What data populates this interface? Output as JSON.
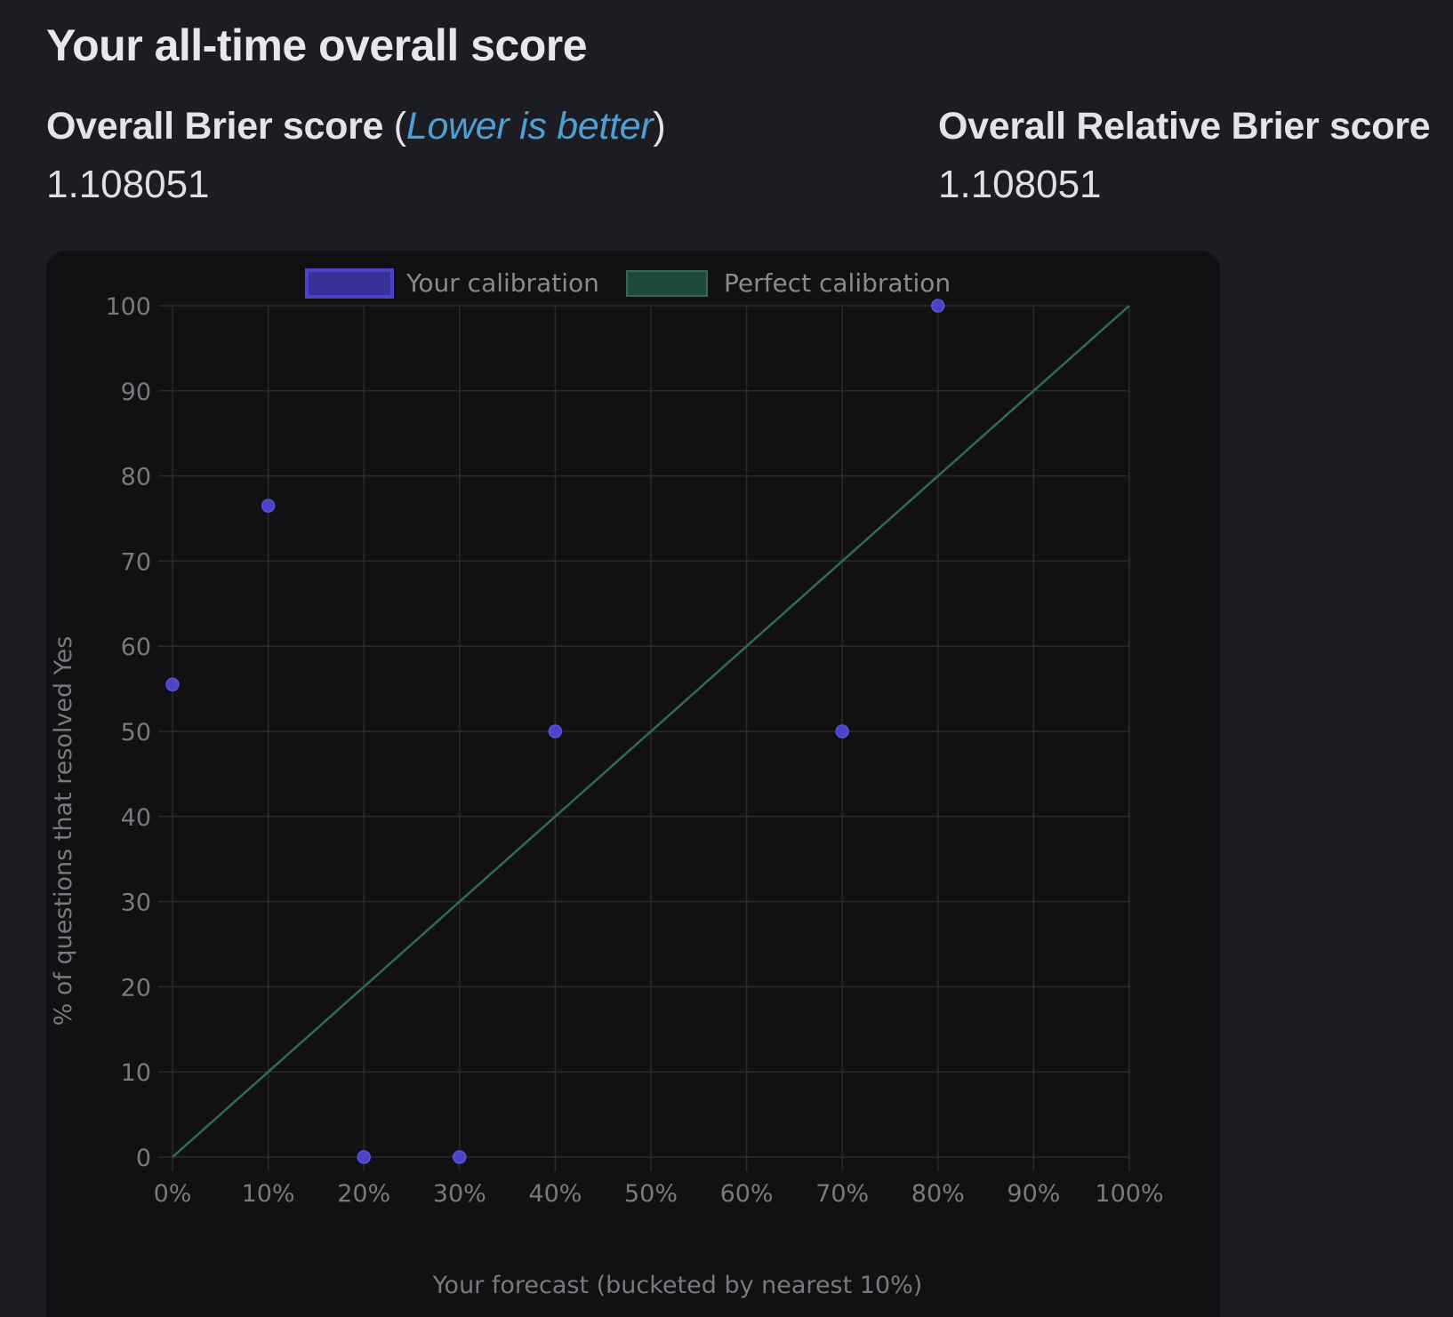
{
  "page": {
    "title": "Your all-time overall score"
  },
  "brier": {
    "label": "Overall Brier score",
    "open_paren": "(",
    "link_text": "Lower is better",
    "close_paren": ")",
    "value": "1.108051"
  },
  "relative_brier": {
    "label": "Overall Relative Brier score",
    "value": "1.108051"
  },
  "colors": {
    "background": "#1c1d22",
    "card": "#111113",
    "link": "#4e9fd6",
    "your_calibration": "#4b44c9",
    "perfect_calibration": "#2f6b55"
  },
  "chart_data": {
    "type": "scatter",
    "xlabel": "Your forecast (bucketed by nearest 10%)",
    "ylabel": "% of questions that resolved Yes",
    "xlim": [
      0,
      100
    ],
    "ylim": [
      0,
      100
    ],
    "x_ticks": [
      "0%",
      "10%",
      "20%",
      "30%",
      "40%",
      "50%",
      "60%",
      "70%",
      "80%",
      "90%",
      "100%"
    ],
    "y_ticks": [
      "0",
      "10",
      "20",
      "30",
      "40",
      "50",
      "60",
      "70",
      "80",
      "90",
      "100"
    ],
    "grid": true,
    "legend_position": "top",
    "legend": [
      "Your calibration",
      "Perfect calibration"
    ],
    "series": [
      {
        "name": "Your calibration",
        "type": "scatter",
        "x": [
          0,
          10,
          20,
          30,
          40,
          70,
          80
        ],
        "y": [
          55.5,
          76.5,
          0,
          0,
          50,
          50,
          100
        ]
      },
      {
        "name": "Perfect calibration",
        "type": "line",
        "x": [
          0,
          100
        ],
        "y": [
          0,
          100
        ]
      }
    ]
  }
}
